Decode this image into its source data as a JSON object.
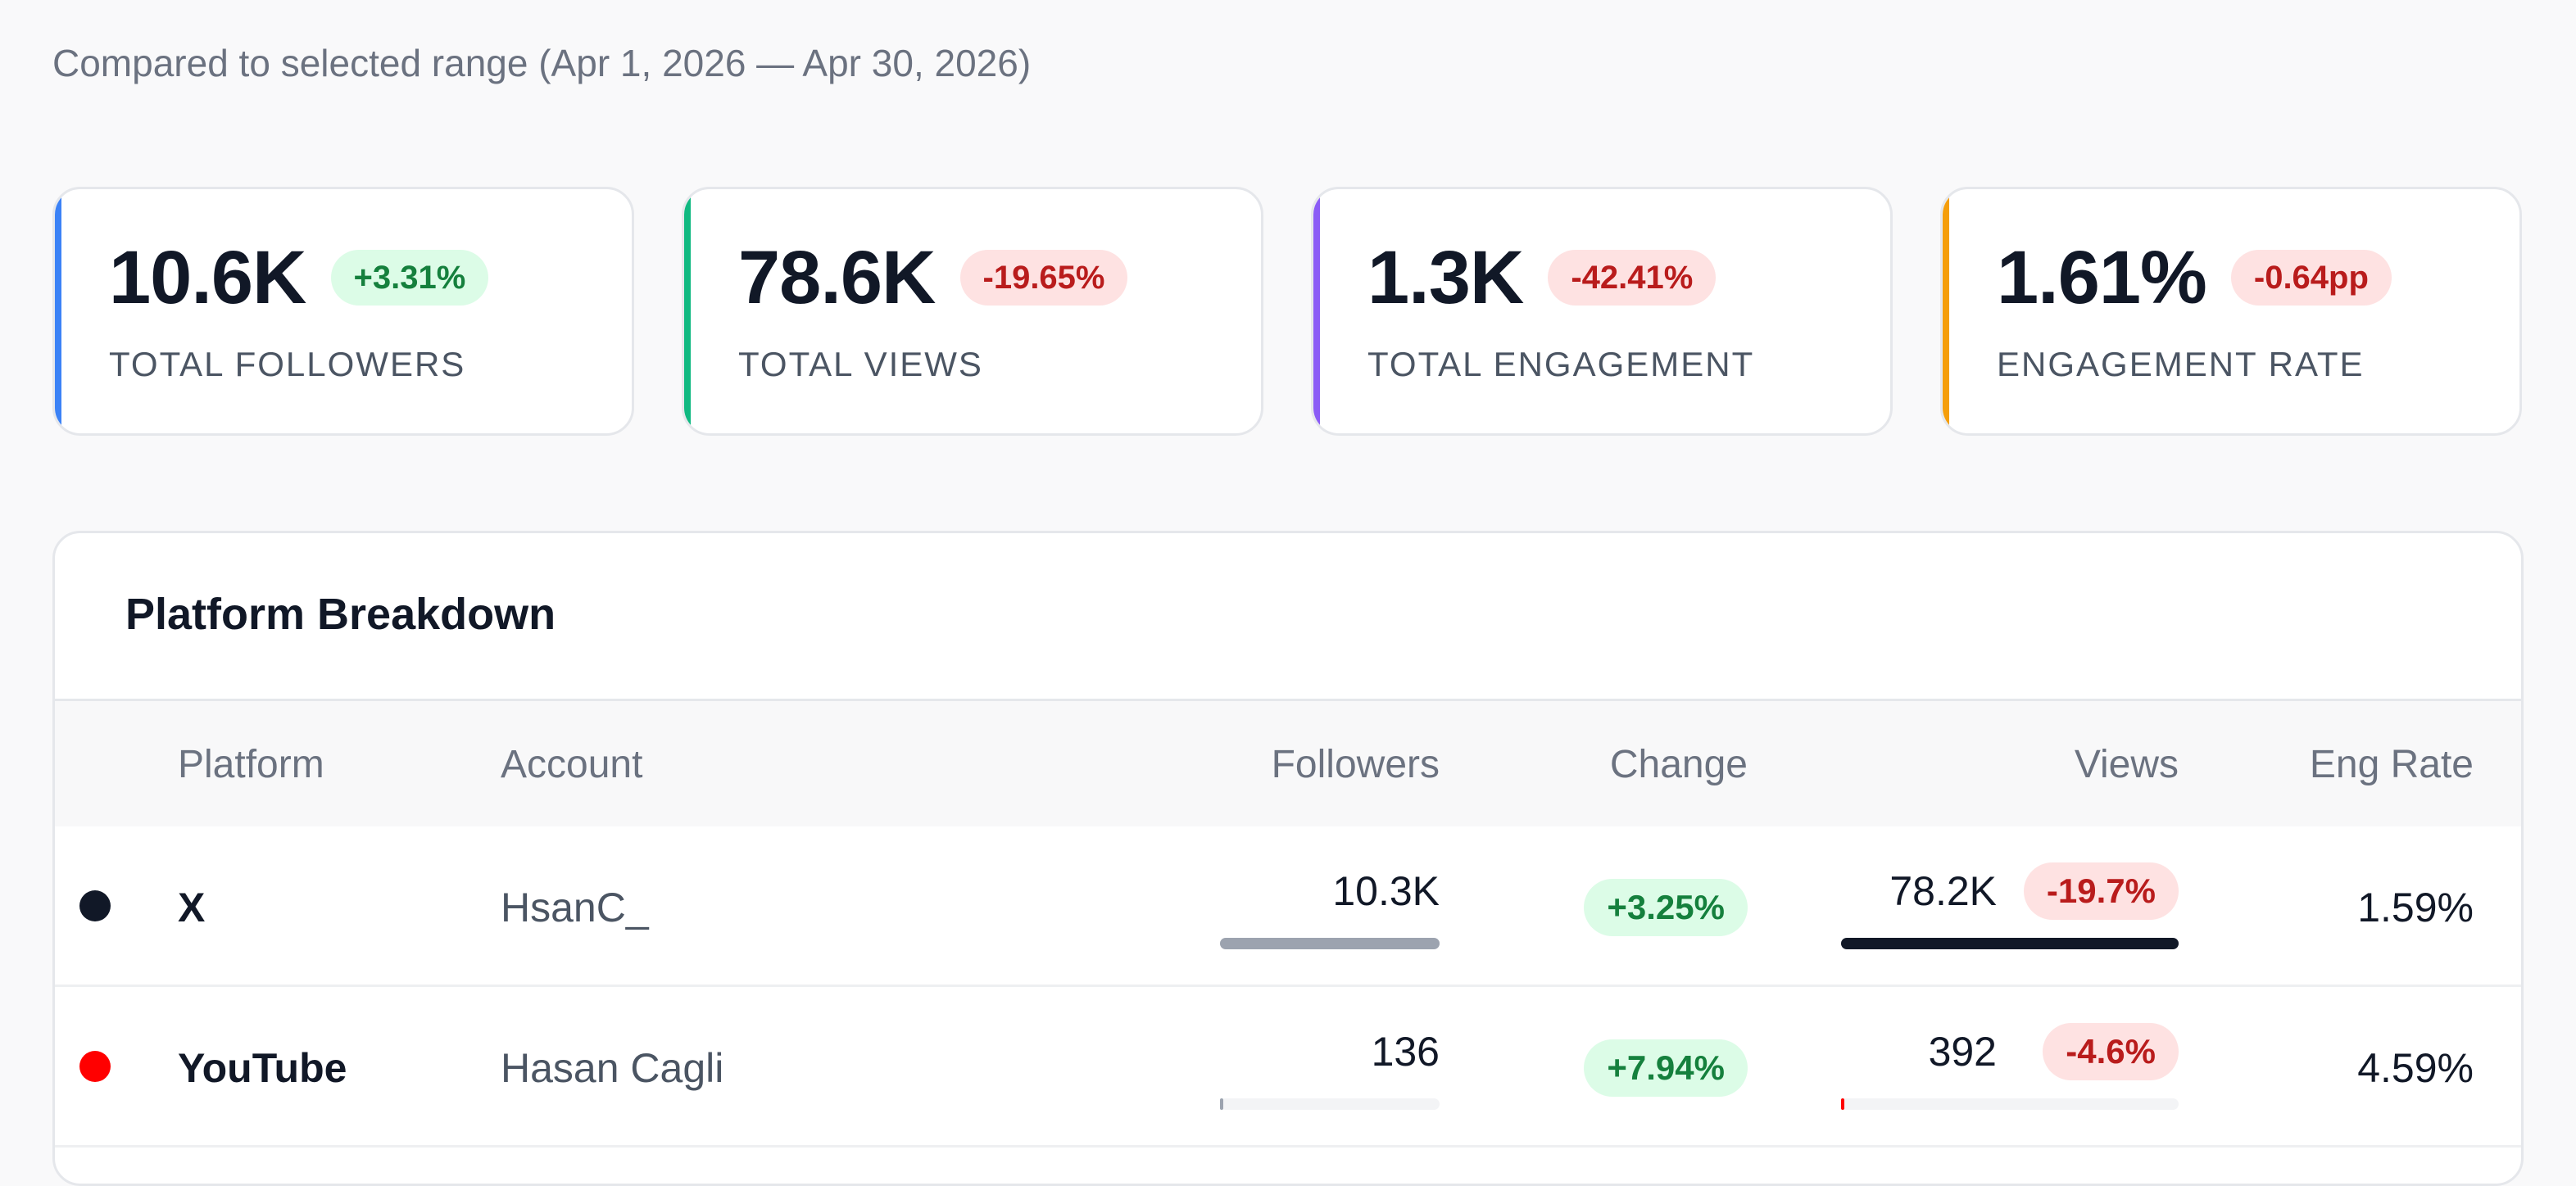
{
  "subtitle": "Compared to selected range (Apr 1, 2026 — Apr 30, 2026)",
  "cards": [
    {
      "value": "10.6K",
      "change": "+3.31%",
      "trend": "up",
      "label": "TOTAL FOLLOWERS",
      "accent": "#3b82f6"
    },
    {
      "value": "78.6K",
      "change": "-19.65%",
      "trend": "down",
      "label": "TOTAL VIEWS",
      "accent": "#10b981"
    },
    {
      "value": "1.3K",
      "change": "-42.41%",
      "trend": "down",
      "label": "TOTAL ENGAGEMENT",
      "accent": "#8b5cf6"
    },
    {
      "value": "1.61%",
      "change": "-0.64pp",
      "trend": "down",
      "label": "ENGAGEMENT RATE",
      "accent": "#f59e0b"
    }
  ],
  "panel": {
    "title": "Platform Breakdown",
    "columns": {
      "platform": "Platform",
      "account": "Account",
      "followers": "Followers",
      "change": "Change",
      "views": "Views",
      "eng_rate": "Eng Rate"
    },
    "rows": [
      {
        "dot_color": "#111827",
        "platform": "X",
        "account": "HsanC_",
        "followers": "10.3K",
        "followers_share": 1.0,
        "followers_bar_color": "#9ca3af",
        "change": "+3.25%",
        "views": "78.2K",
        "views_change": "-19.7%",
        "views_share": 1.0,
        "views_bar_color": "#111827",
        "eng_rate": "1.59%"
      },
      {
        "dot_color": "#ff0000",
        "platform": "YouTube",
        "account": "Hasan Cagli",
        "followers": "136",
        "followers_share": 0.013,
        "followers_bar_color": "#9ca3af",
        "change": "+7.94%",
        "views": "392",
        "views_change": "-4.6%",
        "views_share": 0.005,
        "views_bar_color": "#ff0000",
        "eng_rate": "4.59%"
      }
    ]
  }
}
